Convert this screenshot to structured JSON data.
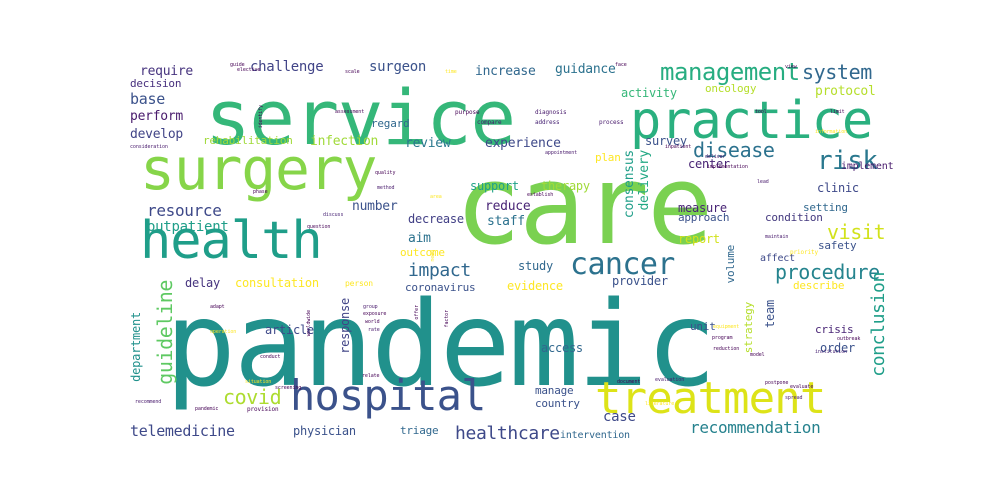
{
  "figure": "word-cloud",
  "colormap": "viridis",
  "background": "#ffffff",
  "words": [
    {
      "text": "pandemic",
      "color": "#21918c"
    },
    {
      "text": "care",
      "color": "#7ad151"
    },
    {
      "text": "service",
      "color": "#35b779"
    },
    {
      "text": "health",
      "color": "#1f9e89"
    },
    {
      "text": "surgery",
      "color": "#86d549"
    },
    {
      "text": "practice",
      "color": "#2ab07f"
    },
    {
      "text": "hospital",
      "color": "#3b528b"
    },
    {
      "text": "treatment",
      "color": "#dde318"
    },
    {
      "text": "cancer",
      "color": "#2c728e"
    },
    {
      "text": "management",
      "color": "#27ad81"
    },
    {
      "text": "risk",
      "color": "#2a788e"
    },
    {
      "text": "disease",
      "color": "#2c728e"
    },
    {
      "text": "system",
      "color": "#31688e"
    },
    {
      "text": "visit",
      "color": "#d2e21b"
    },
    {
      "text": "procedure",
      "color": "#25848e"
    },
    {
      "text": "resource",
      "color": "#3e4989"
    },
    {
      "text": "impact",
      "color": "#31688e"
    },
    {
      "text": "guideline",
      "color": "#5ec962"
    },
    {
      "text": "covid",
      "color": "#addc30"
    },
    {
      "text": "conclusion",
      "color": "#1f9e89"
    },
    {
      "text": "healthcare",
      "color": "#3e4989"
    },
    {
      "text": "recommendation",
      "color": "#26828e"
    },
    {
      "text": "telemedicine",
      "color": "#3e4989"
    },
    {
      "text": "protocol",
      "color": "#b5de2b"
    },
    {
      "text": "require",
      "color": "#46337e"
    },
    {
      "text": "challenge",
      "color": "#414487"
    },
    {
      "text": "surgeon",
      "color": "#3b528b"
    },
    {
      "text": "increase",
      "color": "#31688e"
    },
    {
      "text": "guidance",
      "color": "#2c728e"
    },
    {
      "text": "base",
      "color": "#3b528b"
    },
    {
      "text": "perform",
      "color": "#481a6c"
    },
    {
      "text": "develop",
      "color": "#414487"
    },
    {
      "text": "decision",
      "color": "#472f7d"
    },
    {
      "text": "rehabilitation",
      "color": "#a0da39"
    },
    {
      "text": "infection",
      "color": "#a0da39"
    },
    {
      "text": "review",
      "color": "#2a788e"
    },
    {
      "text": "experience",
      "color": "#3e4989"
    },
    {
      "text": "activity",
      "color": "#35b779"
    },
    {
      "text": "survey",
      "color": "#3b528b"
    },
    {
      "text": "plan",
      "color": "#fde725"
    },
    {
      "text": "oncology",
      "color": "#b5de2b"
    },
    {
      "text": "regard",
      "color": "#31688e"
    },
    {
      "text": "outpatient",
      "color": "#1f9e89"
    },
    {
      "text": "number",
      "color": "#3b528b"
    },
    {
      "text": "support",
      "color": "#1fa187"
    },
    {
      "text": "therapy",
      "color": "#a0da39"
    },
    {
      "text": "reduce",
      "color": "#482475"
    },
    {
      "text": "staff",
      "color": "#2c728e"
    },
    {
      "text": "aim",
      "color": "#2c728e"
    },
    {
      "text": "decrease",
      "color": "#424086"
    },
    {
      "text": "consensus",
      "color": "#1f9e89"
    },
    {
      "text": "delivery",
      "color": "#22a884"
    },
    {
      "text": "center",
      "color": "#482475"
    },
    {
      "text": "clinic",
      "color": "#3e4989"
    },
    {
      "text": "measure",
      "color": "#482475"
    },
    {
      "text": "approach",
      "color": "#3b528b"
    },
    {
      "text": "condition",
      "color": "#44397f"
    },
    {
      "text": "setting",
      "color": "#31688e"
    },
    {
      "text": "safety",
      "color": "#3b528b"
    },
    {
      "text": "implement",
      "color": "#481a6c"
    },
    {
      "text": "report",
      "color": "#d2e21b"
    },
    {
      "text": "outcome",
      "color": "#fde725"
    },
    {
      "text": "study",
      "color": "#31688e"
    },
    {
      "text": "evidence",
      "color": "#fde725"
    },
    {
      "text": "provider",
      "color": "#3b528b"
    },
    {
      "text": "affect",
      "color": "#3e4989"
    },
    {
      "text": "describe",
      "color": "#fde725"
    },
    {
      "text": "consultation",
      "color": "#fde725"
    },
    {
      "text": "delay",
      "color": "#46337e"
    },
    {
      "text": "coronavirus",
      "color": "#3b528b"
    },
    {
      "text": "response",
      "color": "#414487"
    },
    {
      "text": "article",
      "color": "#3e4989"
    },
    {
      "text": "volume",
      "color": "#31688e"
    },
    {
      "text": "strategy",
      "color": "#b5de2b"
    },
    {
      "text": "team",
      "color": "#3b528b"
    },
    {
      "text": "crisis",
      "color": "#482475"
    },
    {
      "text": "unit",
      "color": "#3b528b"
    },
    {
      "text": "order",
      "color": "#3b528b"
    },
    {
      "text": "access",
      "color": "#31688e"
    },
    {
      "text": "department",
      "color": "#21918c"
    },
    {
      "text": "manage",
      "color": "#3b528b"
    },
    {
      "text": "country",
      "color": "#3b528b"
    },
    {
      "text": "case",
      "color": "#3e4989"
    },
    {
      "text": "physician",
      "color": "#3b528b"
    },
    {
      "text": "triage",
      "color": "#31688e"
    },
    {
      "text": "intervention",
      "color": "#31688e"
    },
    {
      "text": "address",
      "color": "#482475"
    },
    {
      "text": "diagnosis",
      "color": "#481a6c"
    },
    {
      "text": "purpose",
      "color": "#440154"
    },
    {
      "text": "compare",
      "color": "#481a6c"
    },
    {
      "text": "process",
      "color": "#481a6c"
    },
    {
      "text": "tool",
      "color": "#440154"
    },
    {
      "text": "information",
      "color": "#fde725"
    },
    {
      "text": "consideration",
      "color": "#481a6c"
    },
    {
      "text": "assessment",
      "color": "#440154"
    },
    {
      "text": "inpatient",
      "color": "#440154"
    },
    {
      "text": "appointment",
      "color": "#481a6c"
    },
    {
      "text": "implementation",
      "color": "#440154"
    },
    {
      "text": "deliver",
      "color": "#481a6c"
    },
    {
      "text": "lead",
      "color": "#481a6c"
    },
    {
      "text": "quality",
      "color": "#440154"
    },
    {
      "text": "method",
      "color": "#481a6c"
    },
    {
      "text": "establish",
      "color": "#440154"
    },
    {
      "text": "area",
      "color": "#fde725"
    },
    {
      "text": "phase",
      "color": "#440154"
    },
    {
      "text": "discuss",
      "color": "#482475"
    },
    {
      "text": "question",
      "color": "#440154"
    },
    {
      "text": "maintain",
      "color": "#481a6c"
    },
    {
      "text": "priority",
      "color": "#fde725"
    },
    {
      "text": "person",
      "color": "#fde725"
    },
    {
      "text": "adapt",
      "color": "#440154"
    },
    {
      "text": "group",
      "color": "#481a6c"
    },
    {
      "text": "exposure",
      "color": "#440154"
    },
    {
      "text": "world",
      "color": "#440154"
    },
    {
      "text": "rate",
      "color": "#481a6c"
    },
    {
      "text": "screening",
      "color": "#440154"
    },
    {
      "text": "relate",
      "color": "#440154"
    },
    {
      "text": "situation",
      "color": "#fde725"
    },
    {
      "text": "operation",
      "color": "#fde725"
    },
    {
      "text": "conduct",
      "color": "#440154"
    },
    {
      "text": "provision",
      "color": "#440154"
    },
    {
      "text": "recommend",
      "color": "#481a6c"
    },
    {
      "text": "pandemic",
      "color": "#440154"
    },
    {
      "text": "document",
      "color": "#440154"
    },
    {
      "text": "evaluation",
      "color": "#481a6c"
    },
    {
      "text": "literature",
      "color": "#fde725"
    },
    {
      "text": "equipment",
      "color": "#fde725"
    },
    {
      "text": "program",
      "color": "#440154"
    },
    {
      "text": "reduction",
      "color": "#440154"
    },
    {
      "text": "model",
      "color": "#440154"
    },
    {
      "text": "postpone",
      "color": "#440154"
    },
    {
      "text": "outbreak",
      "color": "#440154"
    },
    {
      "text": "institution",
      "color": "#482475"
    },
    {
      "text": "spread",
      "color": "#481a6c"
    },
    {
      "text": "evaluate",
      "color": "#440154"
    },
    {
      "text": "identify",
      "color": "#440154"
    },
    {
      "text": "worldwide",
      "color": "#440154"
    },
    {
      "text": "need",
      "color": "#fde725"
    },
    {
      "text": "factor",
      "color": "#440154"
    },
    {
      "text": "offer",
      "color": "#440154"
    },
    {
      "text": "guide",
      "color": "#440154"
    },
    {
      "text": "time",
      "color": "#fde725"
    },
    {
      "text": "face",
      "color": "#440154"
    },
    {
      "text": "view",
      "color": "#440154"
    },
    {
      "text": "scale",
      "color": "#440154"
    },
    {
      "text": "limit",
      "color": "#440154"
    },
    {
      "text": "elective",
      "color": "#440154"
    }
  ]
}
